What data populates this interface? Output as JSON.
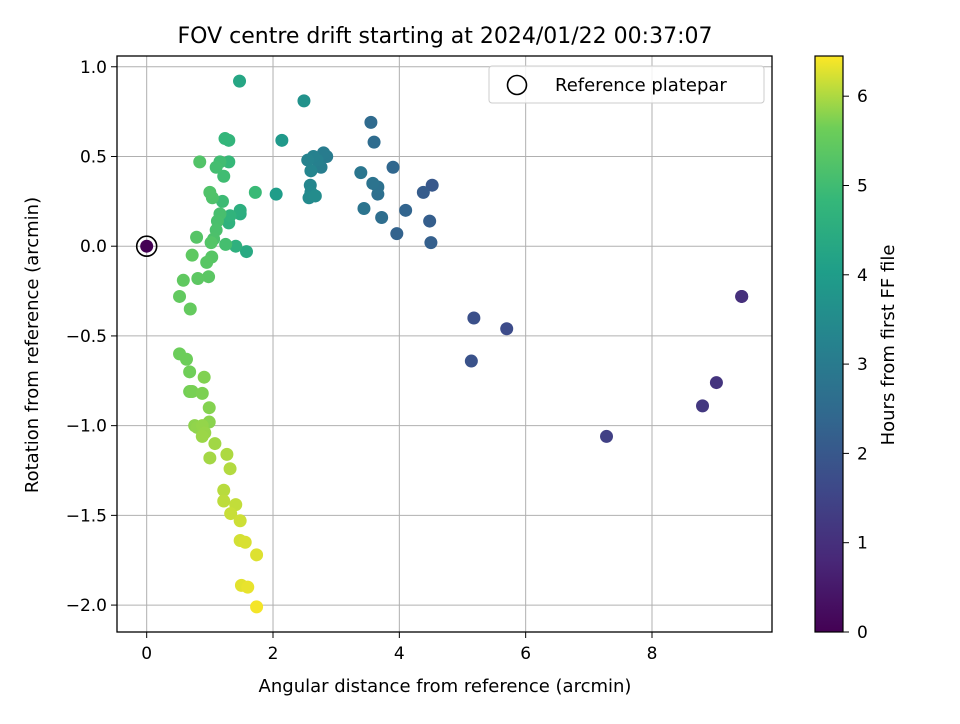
{
  "chart_data": {
    "type": "scatter",
    "title": "FOV centre drift starting at 2024/01/22 00:37:07",
    "xlabel": "Angular distance from reference (arcmin)",
    "ylabel": "Rotation from reference (arcmin)",
    "xlim": [
      -0.47,
      9.9
    ],
    "ylim": [
      -2.15,
      1.06
    ],
    "xticks": [
      0,
      2,
      4,
      6,
      8
    ],
    "xtick_labels": [
      "0",
      "2",
      "4",
      "6",
      "8"
    ],
    "yticks": [
      1.0,
      0.5,
      0.0,
      -0.5,
      -1.0,
      -1.5,
      -2.0
    ],
    "ytick_labels": [
      "1.0",
      "0.5",
      "0.0",
      "−0.5",
      "−1.0",
      "−1.5",
      "−2.0"
    ],
    "grid": true,
    "legend": {
      "label": "Reference platepar",
      "placement": "top-right",
      "marker": "open-circle"
    },
    "reference_point": {
      "x": 0,
      "y": 0
    },
    "colorbar": {
      "label": "Hours from first FF file",
      "range": [
        0,
        6.45
      ],
      "ticks": [
        0,
        1,
        2,
        3,
        4,
        5,
        6
      ],
      "colormap": "viridis"
    },
    "points": [
      {
        "x": 0.0,
        "y": 0.0,
        "c": 0.0
      },
      {
        "x": 9.42,
        "y": -0.28,
        "c": 0.9
      },
      {
        "x": 9.42,
        "y": -0.28,
        "c": 1.0
      },
      {
        "x": 9.02,
        "y": -0.76,
        "c": 1.1
      },
      {
        "x": 8.8,
        "y": -0.89,
        "c": 1.2
      },
      {
        "x": 7.28,
        "y": -1.06,
        "c": 1.4
      },
      {
        "x": 5.7,
        "y": -0.46,
        "c": 1.7
      },
      {
        "x": 5.18,
        "y": -0.4,
        "c": 1.8
      },
      {
        "x": 5.14,
        "y": -0.64,
        "c": 1.85
      },
      {
        "x": 4.52,
        "y": 0.34,
        "c": 2.0
      },
      {
        "x": 4.38,
        "y": 0.3,
        "c": 2.1
      },
      {
        "x": 4.48,
        "y": 0.14,
        "c": 2.15
      },
      {
        "x": 4.5,
        "y": 0.02,
        "c": 2.2
      },
      {
        "x": 3.96,
        "y": 0.07,
        "c": 2.3
      },
      {
        "x": 4.1,
        "y": 0.2,
        "c": 2.35
      },
      {
        "x": 3.9,
        "y": 0.44,
        "c": 2.4
      },
      {
        "x": 3.55,
        "y": 0.69,
        "c": 2.5
      },
      {
        "x": 3.6,
        "y": 0.58,
        "c": 2.55
      },
      {
        "x": 3.72,
        "y": 0.16,
        "c": 2.6
      },
      {
        "x": 3.66,
        "y": 0.29,
        "c": 2.65
      },
      {
        "x": 3.66,
        "y": 0.33,
        "c": 2.7
      },
      {
        "x": 3.58,
        "y": 0.35,
        "c": 2.75
      },
      {
        "x": 3.44,
        "y": 0.21,
        "c": 2.8
      },
      {
        "x": 3.39,
        "y": 0.41,
        "c": 2.85
      },
      {
        "x": 2.85,
        "y": 0.5,
        "c": 3.0
      },
      {
        "x": 2.8,
        "y": 0.52,
        "c": 3.05
      },
      {
        "x": 2.76,
        "y": 0.44,
        "c": 3.1
      },
      {
        "x": 2.7,
        "y": 0.48,
        "c": 3.15
      },
      {
        "x": 2.64,
        "y": 0.5,
        "c": 3.2
      },
      {
        "x": 2.55,
        "y": 0.48,
        "c": 3.25
      },
      {
        "x": 2.6,
        "y": 0.42,
        "c": 3.3
      },
      {
        "x": 2.59,
        "y": 0.34,
        "c": 3.35
      },
      {
        "x": 2.6,
        "y": 0.3,
        "c": 3.4
      },
      {
        "x": 2.57,
        "y": 0.27,
        "c": 3.45
      },
      {
        "x": 2.67,
        "y": 0.28,
        "c": 3.5
      },
      {
        "x": 2.49,
        "y": 0.81,
        "c": 3.7
      },
      {
        "x": 2.14,
        "y": 0.59,
        "c": 3.9
      },
      {
        "x": 2.05,
        "y": 0.29,
        "c": 4.0
      },
      {
        "x": 1.47,
        "y": 0.92,
        "c": 4.3
      },
      {
        "x": 1.58,
        "y": -0.03,
        "c": 4.4
      },
      {
        "x": 1.48,
        "y": 0.18,
        "c": 4.5
      },
      {
        "x": 1.48,
        "y": 0.2,
        "c": 4.55
      },
      {
        "x": 1.41,
        "y": 0.0,
        "c": 4.6
      },
      {
        "x": 1.3,
        "y": 0.13,
        "c": 4.65
      },
      {
        "x": 1.32,
        "y": 0.17,
        "c": 4.7
      },
      {
        "x": 1.3,
        "y": 0.59,
        "c": 4.75
      },
      {
        "x": 1.24,
        "y": 0.6,
        "c": 4.8
      },
      {
        "x": 1.3,
        "y": 0.47,
        "c": 4.85
      },
      {
        "x": 1.72,
        "y": 0.3,
        "c": 4.9
      },
      {
        "x": 1.2,
        "y": 0.25,
        "c": 4.95
      },
      {
        "x": 1.22,
        "y": 0.39,
        "c": 5.0
      },
      {
        "x": 1.16,
        "y": 0.47,
        "c": 5.02
      },
      {
        "x": 1.1,
        "y": 0.44,
        "c": 5.05
      },
      {
        "x": 1.25,
        "y": 0.01,
        "c": 5.07
      },
      {
        "x": 1.16,
        "y": 0.18,
        "c": 5.1
      },
      {
        "x": 1.12,
        "y": 0.14,
        "c": 5.12
      },
      {
        "x": 1.1,
        "y": 0.09,
        "c": 5.15
      },
      {
        "x": 1.06,
        "y": 0.04,
        "c": 5.17
      },
      {
        "x": 1.04,
        "y": 0.27,
        "c": 5.2
      },
      {
        "x": 1.0,
        "y": 0.3,
        "c": 5.22
      },
      {
        "x": 0.84,
        "y": 0.47,
        "c": 5.25
      },
      {
        "x": 1.02,
        "y": 0.02,
        "c": 5.28
      },
      {
        "x": 0.79,
        "y": 0.05,
        "c": 5.3
      },
      {
        "x": 1.03,
        "y": -0.06,
        "c": 5.32
      },
      {
        "x": 0.95,
        "y": -0.09,
        "c": 5.35
      },
      {
        "x": 0.98,
        "y": -0.17,
        "c": 5.37
      },
      {
        "x": 0.81,
        "y": -0.18,
        "c": 5.4
      },
      {
        "x": 0.72,
        "y": -0.05,
        "c": 5.42
      },
      {
        "x": 0.58,
        "y": -0.19,
        "c": 5.45
      },
      {
        "x": 0.52,
        "y": -0.28,
        "c": 5.47
      },
      {
        "x": 0.69,
        "y": -0.35,
        "c": 5.5
      },
      {
        "x": 0.52,
        "y": -0.6,
        "c": 5.6
      },
      {
        "x": 0.63,
        "y": -0.63,
        "c": 5.62
      },
      {
        "x": 0.68,
        "y": -0.7,
        "c": 5.65
      },
      {
        "x": 0.68,
        "y": -0.81,
        "c": 5.67
      },
      {
        "x": 0.72,
        "y": -0.81,
        "c": 5.7
      },
      {
        "x": 0.88,
        "y": -0.82,
        "c": 5.72
      },
      {
        "x": 0.91,
        "y": -0.73,
        "c": 5.75
      },
      {
        "x": 0.99,
        "y": -0.9,
        "c": 5.77
      },
      {
        "x": 0.99,
        "y": -0.98,
        "c": 5.8
      },
      {
        "x": 0.76,
        "y": -1.0,
        "c": 5.82
      },
      {
        "x": 0.8,
        "y": -1.01,
        "c": 5.84
      },
      {
        "x": 0.88,
        "y": -1.0,
        "c": 5.86
      },
      {
        "x": 0.92,
        "y": -1.04,
        "c": 5.88
      },
      {
        "x": 0.88,
        "y": -1.06,
        "c": 5.9
      },
      {
        "x": 1.08,
        "y": -1.1,
        "c": 5.93
      },
      {
        "x": 1.0,
        "y": -1.18,
        "c": 5.95
      },
      {
        "x": 1.27,
        "y": -1.16,
        "c": 6.0
      },
      {
        "x": 1.32,
        "y": -1.24,
        "c": 6.03
      },
      {
        "x": 1.22,
        "y": -1.36,
        "c": 6.06
      },
      {
        "x": 1.22,
        "y": -1.42,
        "c": 6.09
      },
      {
        "x": 1.41,
        "y": -1.44,
        "c": 6.12
      },
      {
        "x": 1.33,
        "y": -1.49,
        "c": 6.15
      },
      {
        "x": 1.48,
        "y": -1.53,
        "c": 6.18
      },
      {
        "x": 1.48,
        "y": -1.64,
        "c": 6.21
      },
      {
        "x": 1.56,
        "y": -1.65,
        "c": 6.24
      },
      {
        "x": 1.74,
        "y": -1.72,
        "c": 6.27
      },
      {
        "x": 1.5,
        "y": -1.89,
        "c": 6.3
      },
      {
        "x": 1.6,
        "y": -1.9,
        "c": 6.33
      },
      {
        "x": 1.74,
        "y": -2.01,
        "c": 6.4
      }
    ]
  }
}
